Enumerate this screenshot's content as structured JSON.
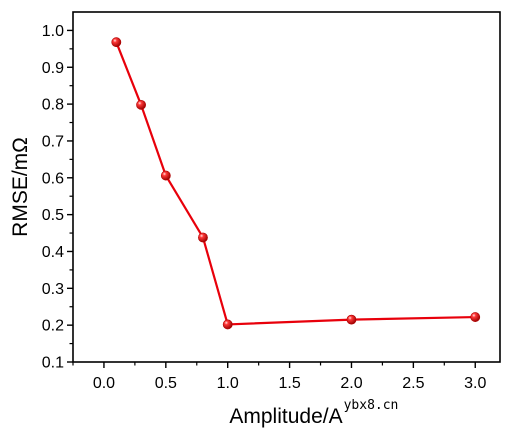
{
  "chart_data": {
    "type": "line",
    "xlabel": "Amplitude/A",
    "ylabel": "RMSE/mΩ",
    "xlim": [
      -0.25,
      3.2
    ],
    "ylim": [
      0.1,
      1.05
    ],
    "x_ticks": [
      "0.0",
      "0.5",
      "1.0",
      "1.5",
      "2.0",
      "2.5",
      "3.0"
    ],
    "y_ticks": [
      "0.1",
      "0.2",
      "0.3",
      "0.4",
      "0.5",
      "0.6",
      "0.7",
      "0.8",
      "0.9",
      "1.0"
    ],
    "grid": false,
    "legend": "none",
    "series": [
      {
        "color": "#e8000b",
        "marker": "sphere",
        "points": [
          {
            "x": 0.1,
            "y": 0.968
          },
          {
            "x": 0.3,
            "y": 0.798
          },
          {
            "x": 0.5,
            "y": 0.606
          },
          {
            "x": 0.8,
            "y": 0.438
          },
          {
            "x": 1.0,
            "y": 0.202
          },
          {
            "x": 2.0,
            "y": 0.215
          },
          {
            "x": 3.0,
            "y": 0.222
          }
        ]
      }
    ]
  },
  "watermark": "ybx8.cn"
}
